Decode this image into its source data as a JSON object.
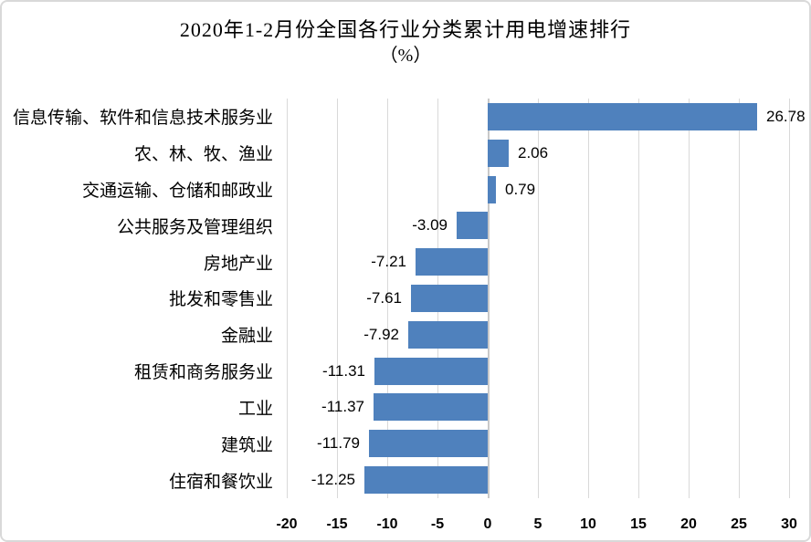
{
  "window": {
    "background_color": "#FFFFFF",
    "border_color": "#D9D9D9"
  },
  "chart_data": {
    "type": "bar",
    "orientation": "horizontal",
    "title": "2020年1-2月份全国各行业分类累计用电增速排行",
    "subtitle": "（%）",
    "categories": [
      "信息传输、软件和信息技术服务业",
      "农、林、牧、渔业",
      "交通运输、仓储和邮政业",
      "公共服务及管理组织",
      "房地产业",
      "批发和零售业",
      "金融业",
      "租赁和商务服务业",
      "工业",
      "建筑业",
      "住宿和餐饮业"
    ],
    "values": [
      26.78,
      2.06,
      0.79,
      -3.09,
      -7.21,
      -7.61,
      -7.92,
      -11.31,
      -11.37,
      -11.79,
      -12.25
    ],
    "value_labels": [
      "26.78",
      "2.06",
      "0.79",
      "-3.09",
      "-7.21",
      "-7.61",
      "-7.92",
      "-11.31",
      "-11.37",
      "-11.79",
      "-12.25"
    ],
    "xlim": [
      -20,
      30
    ],
    "x_ticks": [
      -20,
      -15,
      -10,
      -5,
      0,
      5,
      10,
      15,
      20,
      25,
      30
    ],
    "x_tick_labels": [
      "-20",
      "-15",
      "-10",
      "-5",
      "0",
      "5",
      "10",
      "15",
      "20",
      "25",
      "30"
    ],
    "grid": "vertical-on",
    "legend": "none",
    "bar_color": "#4F81BD",
    "gridline_color": "#D9D9D9",
    "text_color": "#000000"
  }
}
